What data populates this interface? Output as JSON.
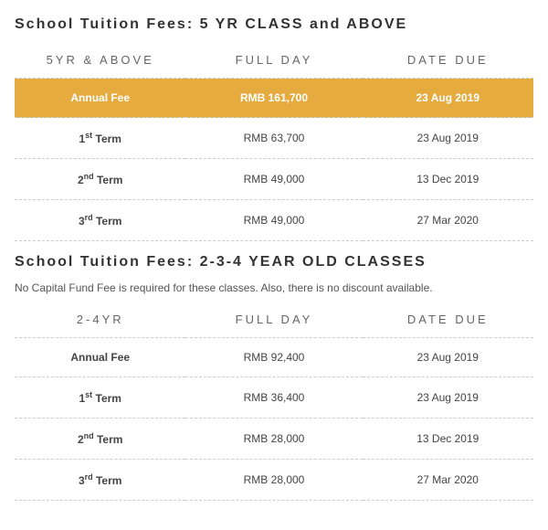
{
  "colors": {
    "highlight_bg": "#e5ab3f",
    "highlight_text": "#ffffff",
    "heading_text": "#333333",
    "body_text": "#444444",
    "subhead_text": "#666666",
    "border": "#cccccc",
    "background": "#ffffff"
  },
  "tables": [
    {
      "title": "School Tuition Fees: 5 YR CLASS and ABOVE",
      "note": "",
      "columns": [
        "5YR & ABOVE",
        "FULL DAY",
        "DATE DUE"
      ],
      "rows": [
        {
          "label_pre": "",
          "label_main": "Annual Fee",
          "label_sup": "",
          "label_post": "",
          "full_day": "RMB 161,700",
          "date_due": "23 Aug 2019",
          "highlight": true
        },
        {
          "label_pre": "1",
          "label_sup": "st",
          "label_post": " Term",
          "full_day": "RMB 63,700",
          "date_due": "23 Aug 2019",
          "highlight": false
        },
        {
          "label_pre": "2",
          "label_sup": "nd",
          "label_post": " Term",
          "full_day": "RMB 49,000",
          "date_due": "13 Dec 2019",
          "highlight": false
        },
        {
          "label_pre": "3",
          "label_sup": "rd",
          "label_post": "  Term",
          "full_day": "RMB 49,000",
          "date_due": "27 Mar 2020",
          "highlight": false
        }
      ]
    },
    {
      "title": "School Tuition Fees: 2-3-4 YEAR OLD CLASSES",
      "note": "No Capital Fund Fee is required for these classes. Also, there is no discount available.",
      "columns": [
        "2-4YR",
        "FULL DAY",
        "DATE DUE"
      ],
      "rows": [
        {
          "label_pre": "",
          "label_main": "Annual Fee",
          "label_sup": "",
          "label_post": "",
          "full_day": "RMB 92,400",
          "date_due": "23 Aug 2019",
          "highlight": false
        },
        {
          "label_pre": "1",
          "label_sup": "st",
          "label_post": " Term",
          "full_day": "RMB 36,400",
          "date_due": "23 Aug 2019",
          "highlight": false
        },
        {
          "label_pre": "2",
          "label_sup": "nd",
          "label_post": " Term",
          "full_day": "RMB 28,000",
          "date_due": "13 Dec 2019",
          "highlight": false
        },
        {
          "label_pre": "3",
          "label_sup": "rd",
          "label_post": "  Term",
          "full_day": "RMB 28,000",
          "date_due": "27 Mar 2020",
          "highlight": false
        }
      ]
    }
  ]
}
